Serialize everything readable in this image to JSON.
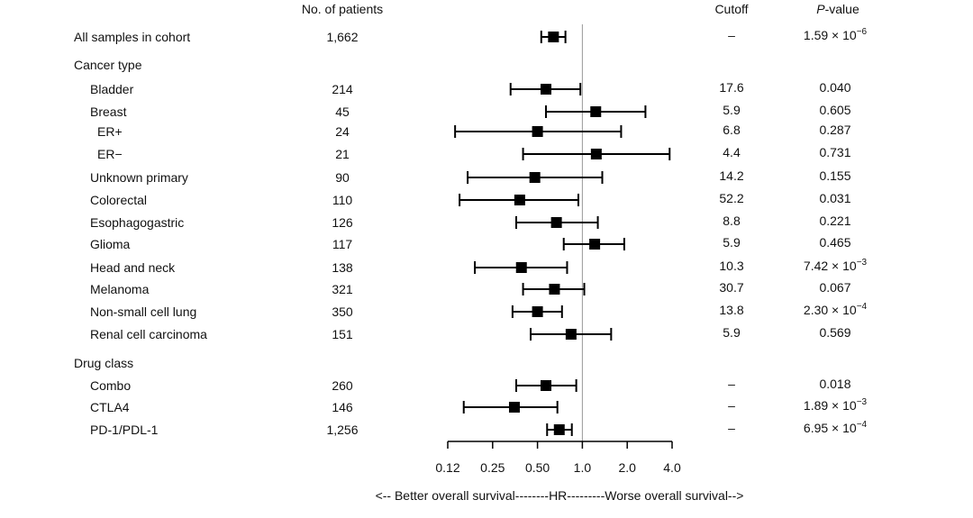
{
  "chart_data": {
    "type": "forest",
    "headers": {
      "patients": "No. of patients",
      "cutoff": "Cutoff",
      "pvalue_italic": "P",
      "pvalue_rest": "-value"
    },
    "x_scale": "log2",
    "xlim": [
      0.125,
      4.0
    ],
    "reference_line": 1.0,
    "x_ticks": [
      0.125,
      0.25,
      0.5,
      1.0,
      2.0,
      4.0
    ],
    "x_tick_labels": [
      "0.12",
      "0.25",
      "0.50",
      "1.0",
      "2.0",
      "4.0"
    ],
    "xlabel": "<-- Better overall survival--------HR---------Worse overall survival-->",
    "sections": [
      {
        "label": "All samples in cohort",
        "is_header": false,
        "indent": 0,
        "n": "1,662",
        "cutoff": "–",
        "p": {
          "base": "1.59 × 10",
          "exp": "−6"
        },
        "hr": 0.64,
        "lo": 0.53,
        "hi": 0.77
      },
      {
        "label": "Cancer type",
        "is_header": true
      },
      {
        "label": "Bladder",
        "indent": 1,
        "n": "214",
        "cutoff": "17.6",
        "p": {
          "base": "0.040",
          "exp": ""
        },
        "hr": 0.57,
        "lo": 0.33,
        "hi": 0.97
      },
      {
        "label": "Breast",
        "indent": 1,
        "n": "45",
        "cutoff": "5.9",
        "p": {
          "base": "0.605",
          "exp": ""
        },
        "hr": 1.23,
        "lo": 0.57,
        "hi": 2.65
      },
      {
        "label": "ER+",
        "indent": 2,
        "n": "24",
        "cutoff": "6.8",
        "p": {
          "base": "0.287",
          "exp": ""
        },
        "hr": 0.5,
        "lo": 0.14,
        "hi": 1.82
      },
      {
        "label": "ER−",
        "indent": 2,
        "n": "21",
        "cutoff": "4.4",
        "p": {
          "base": "0.731",
          "exp": ""
        },
        "hr": 1.24,
        "lo": 0.4,
        "hi": 3.85
      },
      {
        "label": "Unknown primary",
        "indent": 1,
        "n": "90",
        "cutoff": "14.2",
        "p": {
          "base": "0.155",
          "exp": ""
        },
        "hr": 0.48,
        "lo": 0.17,
        "hi": 1.36
      },
      {
        "label": "Colorectal",
        "indent": 1,
        "n": "110",
        "cutoff": "52.2",
        "p": {
          "base": "0.031",
          "exp": ""
        },
        "hr": 0.38,
        "lo": 0.15,
        "hi": 0.94
      },
      {
        "label": "Esophagogastric",
        "indent": 1,
        "n": "126",
        "cutoff": "8.8",
        "p": {
          "base": "0.221",
          "exp": ""
        },
        "hr": 0.67,
        "lo": 0.36,
        "hi": 1.27
      },
      {
        "label": "Glioma",
        "indent": 1,
        "n": "117",
        "cutoff": "5.9",
        "p": {
          "base": "0.465",
          "exp": ""
        },
        "hr": 1.21,
        "lo": 0.75,
        "hi": 1.91
      },
      {
        "label": "Head and neck",
        "indent": 1,
        "n": "138",
        "cutoff": "10.3",
        "p": {
          "base": "7.42 × 10",
          "exp": "−3"
        },
        "hr": 0.39,
        "lo": 0.19,
        "hi": 0.79
      },
      {
        "label": "Melanoma",
        "indent": 1,
        "n": "321",
        "cutoff": "30.7",
        "p": {
          "base": "0.067",
          "exp": ""
        },
        "hr": 0.65,
        "lo": 0.4,
        "hi": 1.03
      },
      {
        "label": "Non-small cell lung",
        "indent": 1,
        "n": "350",
        "cutoff": "13.8",
        "p": {
          "base": "2.30 × 10",
          "exp": "−4"
        },
        "hr": 0.5,
        "lo": 0.34,
        "hi": 0.73
      },
      {
        "label": "Renal cell carcinoma",
        "indent": 1,
        "n": "151",
        "cutoff": "5.9",
        "p": {
          "base": "0.569",
          "exp": ""
        },
        "hr": 0.84,
        "lo": 0.45,
        "hi": 1.56
      },
      {
        "label": "Drug class",
        "is_header": true
      },
      {
        "label": "Combo",
        "indent": 1,
        "n": "260",
        "cutoff": "–",
        "p": {
          "base": "0.018",
          "exp": ""
        },
        "hr": 0.57,
        "lo": 0.36,
        "hi": 0.91
      },
      {
        "label": "CTLA4",
        "indent": 1,
        "n": "146",
        "cutoff": "–",
        "p": {
          "base": "1.89 × 10",
          "exp": "−3"
        },
        "hr": 0.35,
        "lo": 0.16,
        "hi": 0.68
      },
      {
        "label": "PD-1/PDL-1",
        "indent": 1,
        "n": "1,256",
        "cutoff": "–",
        "p": {
          "base": "6.95 × 10",
          "exp": "−4"
        },
        "hr": 0.7,
        "lo": 0.58,
        "hi": 0.85
      }
    ]
  }
}
